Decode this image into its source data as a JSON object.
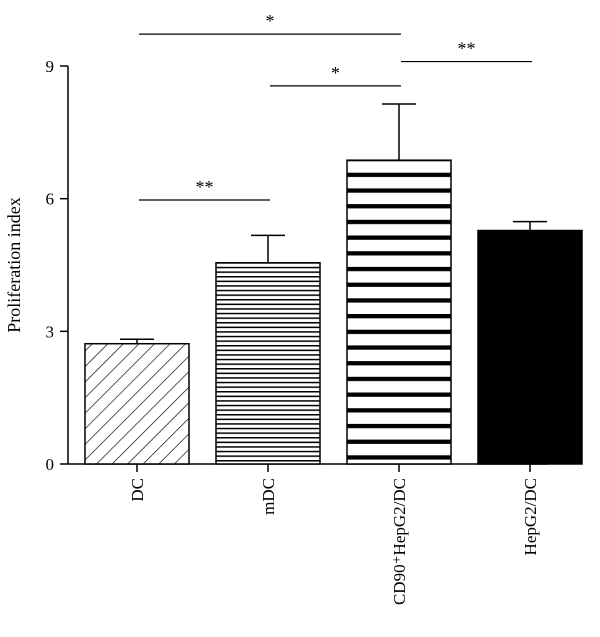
{
  "chart_data": {
    "type": "bar",
    "ylabel": "Proliferation index",
    "ylim": [
      0,
      9
    ],
    "yticks": [
      0,
      3,
      6,
      9
    ],
    "categories": [
      "DC",
      "mDC",
      "CD90⁺HepG2/DC",
      "HepG2/DC"
    ],
    "values": [
      2.72,
      4.55,
      6.87,
      5.28
    ],
    "errors": [
      0.1,
      0.62,
      1.27,
      0.2
    ],
    "bar_fills": [
      "diagonal-hatch",
      "fine-horizontal-stripes",
      "bold-horizontal-stripes",
      "solid-black"
    ],
    "significance": [
      {
        "from": 0,
        "to": 1,
        "label": "**",
        "y": 5.97
      },
      {
        "from": 1,
        "to": 2,
        "label": "*",
        "y": 8.55
      },
      {
        "from": 2,
        "to": 3,
        "label": "**",
        "y": 9.1
      },
      {
        "from": 0,
        "to": 2,
        "label": "*",
        "y": 9.72
      }
    ],
    "colors": {
      "ink": "#000000",
      "background": "#ffffff"
    }
  }
}
